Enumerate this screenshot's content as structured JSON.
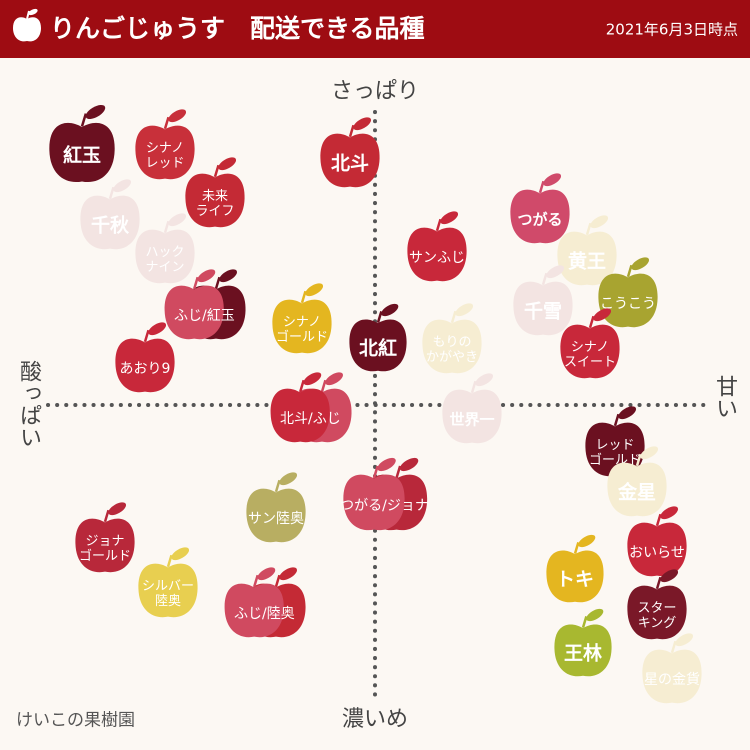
{
  "header": {
    "title": "りんごじゅうす　配送できる品種",
    "date": "2021年6月3日時点"
  },
  "axes": {
    "top": "さっぱり",
    "bottom": "濃いめ",
    "left": "酸っぱい",
    "right": "甘い"
  },
  "footer": "けいこの果樹園",
  "apples": [
    {
      "label": [
        "紅玉"
      ],
      "colors": [
        "#6b1020"
      ]
    },
    {
      "label": [
        "シナノ",
        "レッド"
      ],
      "colors": [
        "#c8303a"
      ]
    },
    {
      "label": [
        "未来",
        "ライフ"
      ],
      "colors": [
        "#c42a35"
      ]
    },
    {
      "label": [
        "千秋"
      ],
      "colors": [
        "#f3e4e2"
      ]
    },
    {
      "label": [
        "ハック",
        "ナイン"
      ],
      "colors": [
        "#f3e4e2"
      ]
    },
    {
      "label": [
        "ふじ/紅玉"
      ],
      "colors": [
        "#d04a60",
        "#6b1020"
      ]
    },
    {
      "label": [
        "あおり9"
      ],
      "colors": [
        "#c8283a"
      ]
    },
    {
      "label": [
        "シナノ",
        "ゴールド"
      ],
      "colors": [
        "#e4b620"
      ]
    },
    {
      "label": [
        "北斗"
      ],
      "colors": [
        "#c42a35"
      ]
    },
    {
      "label": [
        "サンふじ"
      ],
      "colors": [
        "#c8283a"
      ]
    },
    {
      "label": [
        "北紅"
      ],
      "colors": [
        "#6b1020"
      ]
    },
    {
      "label": [
        "もりの",
        "かがやき"
      ],
      "colors": [
        "#f6edd2"
      ]
    },
    {
      "label": [
        "北斗/ふじ"
      ],
      "colors": [
        "#c8283a",
        "#d04a60"
      ]
    },
    {
      "label": [
        "世界一"
      ],
      "colors": [
        "#f3e4e2"
      ]
    },
    {
      "label": [
        "つがる"
      ],
      "colors": [
        "#d04a6a"
      ]
    },
    {
      "label": [
        "黄王"
      ],
      "colors": [
        "#f6edd2"
      ]
    },
    {
      "label": [
        "千雪"
      ],
      "colors": [
        "#f3e4e2"
      ]
    },
    {
      "label": [
        "こうこう"
      ],
      "colors": [
        "#a8a430"
      ]
    },
    {
      "label": [
        "シナノ",
        "スイート"
      ],
      "colors": [
        "#c8283a"
      ]
    },
    {
      "label": [
        "レッド",
        "ゴールド"
      ],
      "colors": [
        "#6b1020"
      ]
    },
    {
      "label": [
        "金星"
      ],
      "colors": [
        "#f6edd2"
      ]
    },
    {
      "label": [
        "サン陸奥"
      ],
      "colors": [
        "#b8ae62"
      ]
    },
    {
      "label": [
        "つがる/ジョナ"
      ],
      "colors": [
        "#d04a60",
        "#b8283a"
      ]
    },
    {
      "label": [
        "ジョナ",
        "ゴールド"
      ],
      "colors": [
        "#b8283a"
      ]
    },
    {
      "label": [
        "シルバー",
        "陸奥"
      ],
      "colors": [
        "#e8cf50"
      ]
    },
    {
      "label": [
        "ふじ/陸奥"
      ],
      "colors": [
        "#d04a60",
        "#c42a35"
      ]
    },
    {
      "label": [
        "おいらせ"
      ],
      "colors": [
        "#c8283a"
      ]
    },
    {
      "label": [
        "トキ"
      ],
      "colors": [
        "#e4b620"
      ]
    },
    {
      "label": [
        "スター",
        "キング"
      ],
      "colors": [
        "#7a1828"
      ]
    },
    {
      "label": [
        "王林"
      ],
      "colors": [
        "#a8b830"
      ]
    },
    {
      "label": [
        "星の金貨"
      ],
      "colors": [
        "#f6edd2"
      ]
    }
  ]
}
